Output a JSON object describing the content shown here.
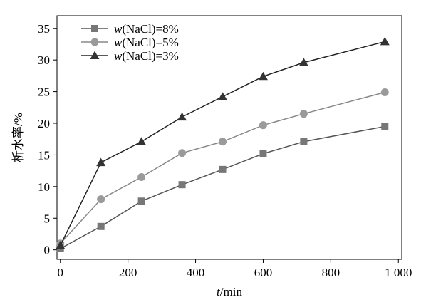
{
  "chart_data": {
    "type": "line",
    "title": "",
    "xlabel_var": "t",
    "xlabel_unit": "/min",
    "ylabel": "析水率/%",
    "xlim": [
      -10,
      1010
    ],
    "ylim": [
      -1.5,
      37
    ],
    "xticks": [
      0,
      200,
      400,
      600,
      800,
      1000
    ],
    "xtick_labels": [
      "0",
      "200",
      "400",
      "600",
      "800",
      "1 000"
    ],
    "yticks": [
      0,
      5,
      10,
      15,
      20,
      25,
      30,
      35
    ],
    "ytick_labels": [
      "0",
      "5",
      "10",
      "15",
      "20",
      "25",
      "30",
      "35"
    ],
    "grid": false,
    "legend_position": "top-left",
    "series": [
      {
        "name_var": "w",
        "name_rest": "(NaCl)=8%",
        "marker": "square",
        "color": "#555555",
        "marker_color": "#777777",
        "x": [
          0,
          120,
          240,
          360,
          480,
          600,
          720,
          960
        ],
        "y": [
          0.2,
          3.7,
          7.7,
          10.3,
          12.7,
          15.2,
          17.1,
          19.5
        ]
      },
      {
        "name_var": "w",
        "name_rest": "(NaCl)=5%",
        "marker": "circle",
        "color": "#888888",
        "marker_color": "#9a9a9a",
        "x": [
          0,
          120,
          240,
          360,
          480,
          600,
          720,
          960
        ],
        "y": [
          1.0,
          8.0,
          11.5,
          15.3,
          17.1,
          19.7,
          21.5,
          24.9
        ]
      },
      {
        "name_var": "w",
        "name_rest": "(NaCl)=3%",
        "marker": "triangle",
        "color": "#222222",
        "marker_color": "#333333",
        "x": [
          0,
          120,
          240,
          360,
          480,
          600,
          720,
          960
        ],
        "y": [
          0.7,
          13.8,
          17.1,
          21.0,
          24.2,
          27.4,
          29.6,
          32.9
        ]
      }
    ]
  }
}
